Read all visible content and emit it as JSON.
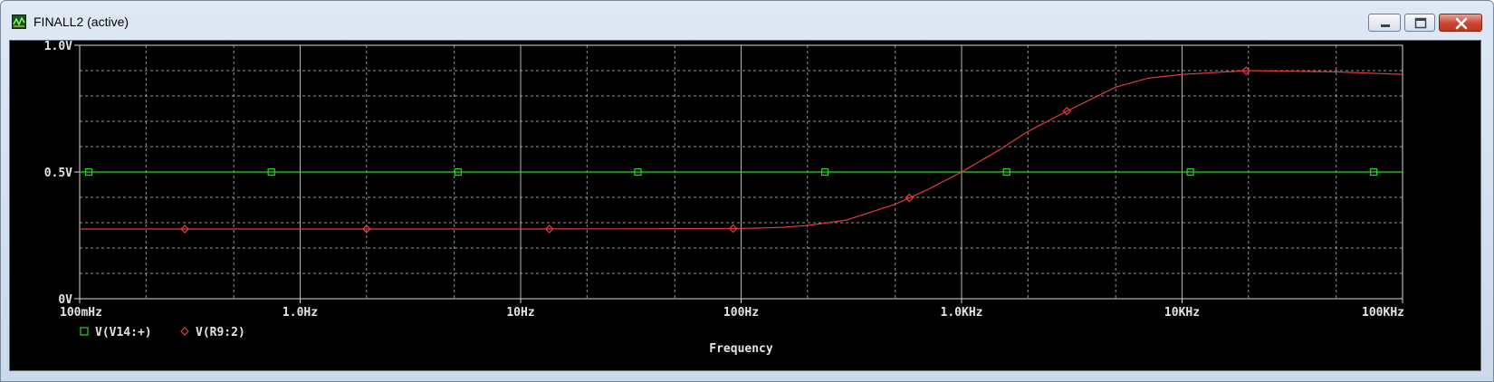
{
  "window": {
    "title": "FINALL2 (active)",
    "icon": "probe-app-icon",
    "buttons": [
      "minimize-icon",
      "maximize-icon",
      "close-icon"
    ]
  },
  "colors": {
    "background": "#000000",
    "grid": "#c8c8c8",
    "series_green": "#27d627",
    "series_red": "#e03c3c",
    "text": "#e4e4e4"
  },
  "chart_data": {
    "type": "line",
    "xscale": "log",
    "xlim": [
      0.1,
      100000
    ],
    "ylim": [
      0,
      1.0
    ],
    "grid": true,
    "xlabel": "Frequency",
    "ylabel": "",
    "x_ticks": [
      0.1,
      1,
      10,
      100,
      1000,
      10000,
      100000
    ],
    "x_tick_labels": [
      "100mHz",
      "1.0Hz",
      "10Hz",
      "100Hz",
      "1.0KHz",
      "10KHz",
      "100KHz"
    ],
    "y_ticks": [
      0,
      0.5,
      1.0
    ],
    "y_tick_labels": [
      "0V",
      "0.5V",
      "1.0V"
    ],
    "legend_position": "bottom-left",
    "series": [
      {
        "name": "V(V14:+)",
        "color": "#27d627",
        "marker": "square",
        "x": [
          0.1,
          1,
          10,
          100,
          1000,
          10000,
          100000
        ],
        "y": [
          0.5,
          0.5,
          0.5,
          0.5,
          0.5,
          0.5,
          0.5
        ],
        "marker_x": [
          0.11,
          0.74,
          5.2,
          34,
          240,
          1600,
          10900,
          74000
        ]
      },
      {
        "name": "V(R9:2)",
        "color": "#e03c3c",
        "marker": "diamond",
        "x": [
          0.1,
          1,
          10,
          100,
          150,
          200,
          300,
          500,
          700,
          1000,
          1500,
          2000,
          3000,
          5000,
          7000,
          10000,
          20000,
          50000,
          100000
        ],
        "y": [
          0.275,
          0.275,
          0.275,
          0.277,
          0.281,
          0.289,
          0.31,
          0.373,
          0.43,
          0.5,
          0.59,
          0.66,
          0.74,
          0.835,
          0.87,
          0.885,
          0.9,
          0.895,
          0.885
        ],
        "marker_x": [
          0.3,
          2.0,
          13.5,
          92,
          580,
          3000,
          19500
        ]
      }
    ]
  }
}
